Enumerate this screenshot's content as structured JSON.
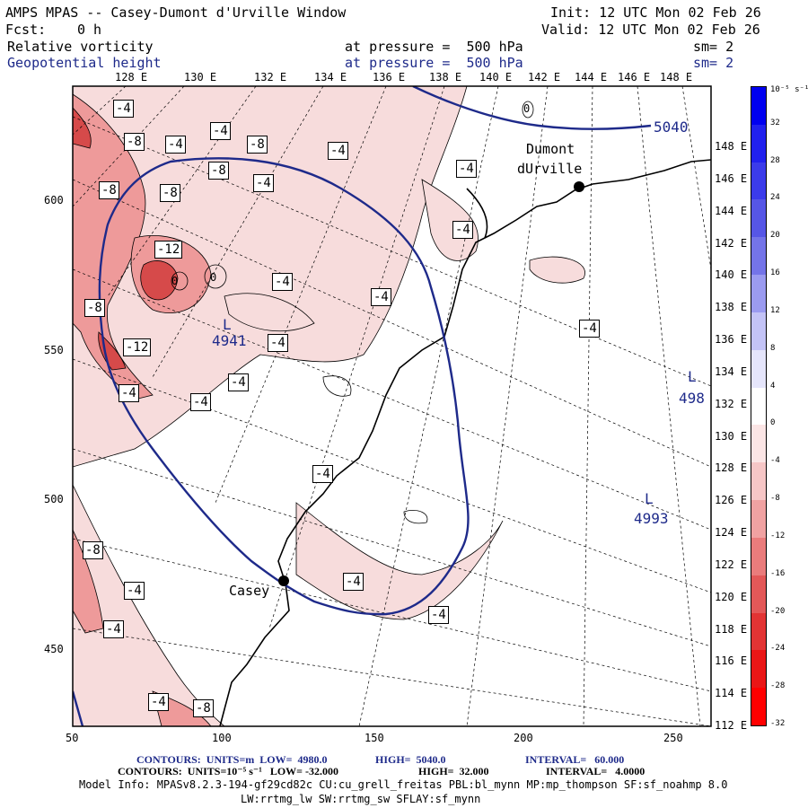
{
  "header": {
    "title": "AMPS MPAS -- Casey-Dumont d'Urville Window",
    "init": "Init: 12 UTC Mon 02 Feb 26",
    "fcst_label": "Fcst:",
    "fcst_value": "0 h",
    "valid": "Valid: 12 UTC Mon 02 Feb 26",
    "field1_name": "Relative vorticity",
    "field1_level": "at pressure =  500 hPa",
    "field1_sm": "sm= 2",
    "field2_name": "Geopotential height",
    "field2_level": "at pressure =  500 hPa",
    "field2_sm": "sm= 2"
  },
  "colors": {
    "height_contour": "#1e2a8a",
    "coast": "#000000",
    "vort_neg_light": "#f7dcdc",
    "vort_neg_mid": "#ee9a9a",
    "vort_neg_strong": "#d64a4a"
  },
  "map": {
    "top_longitudes": [
      "128 E",
      "130 E",
      "132 E",
      "134 E",
      "136 E",
      "138 E",
      "140 E",
      "142 E",
      "144 E",
      "146 E",
      "148 E"
    ],
    "right_longitudes": [
      "148 E",
      "146 E",
      "144 E",
      "142 E",
      "140 E",
      "138 E",
      "136 E",
      "134 E",
      "132 E",
      "130 E",
      "128 E",
      "126 E",
      "124 E",
      "122 E",
      "120 E",
      "118 E",
      "116 E",
      "114 E",
      "112 E"
    ],
    "x_ticks": [
      "50",
      "100",
      "150",
      "200",
      "250"
    ],
    "y_ticks": [
      "600",
      "550",
      "500",
      "450"
    ],
    "stations": [
      {
        "name_line1": "Casey",
        "name_line2": ""
      },
      {
        "name_line1": "Dumont",
        "name_line2": "dUrville"
      }
    ],
    "height_labels": [
      "5040",
      "4941",
      "4993",
      "498"
    ],
    "low_marker": "L",
    "vort_labels": [
      "-4",
      "-8",
      "-12",
      "0"
    ]
  },
  "colorbar": {
    "unit": "10⁻⁵ s⁻¹",
    "labels": [
      "32",
      "28",
      "24",
      "20",
      "16",
      "12",
      "8",
      "4",
      "0",
      "-4",
      "-8",
      "-12",
      "-16",
      "-20",
      "-24",
      "-28",
      "-32"
    ],
    "swatches": [
      "#0000f0",
      "#2121ee",
      "#3b3bea",
      "#5656e6",
      "#7474e8",
      "#9b9bf0",
      "#c3c3f6",
      "#e5e5fb",
      "#ffffff",
      "#fbe5e5",
      "#f6c6c6",
      "#f0a2a2",
      "#ea7c7c",
      "#e35858",
      "#e23434",
      "#ea1616",
      "#ff0000"
    ]
  },
  "footer": {
    "contours1_label": "CONTOURS:  UNITS=m  LOW=  4980.0",
    "contours1_high": "HIGH=  5040.0",
    "contours1_interval": "INTERVAL=   60.000",
    "contours2_label": "CONTOURS:  UNITS=10⁻⁵ s⁻¹   LOW= -32.000",
    "contours2_high": "HIGH=  32.000",
    "contours2_interval": "INTERVAL=   4.0000",
    "model_info": "Model Info: MPASv8.2.3-194-gf29cd82c CU:cu_grell_freitas PBL:bl_mynn MP:mp_thompson SF:sf_noahmp 8.0",
    "model_info2": "LW:rrtmg_lw SW:rrtmg_sw SFLAY:sf_mynn"
  }
}
